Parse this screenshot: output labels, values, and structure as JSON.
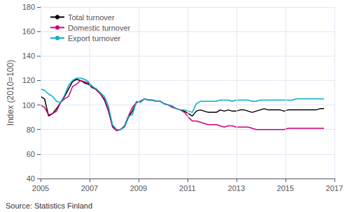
{
  "chart_data": {
    "type": "line",
    "ylabel": "Index (2010=100)",
    "annotations": [
      "Source: Statistics Finland"
    ],
    "x": [
      2005,
      2005.163099,
      2005.326197,
      2005.489296,
      2005.652394,
      2005.815493,
      2005.978592,
      2006.14169,
      2006.304789,
      2006.467887,
      2006.630986,
      2006.794085,
      2006.957183,
      2007.120282,
      2007.28338,
      2007.446479,
      2007.609577,
      2007.772676,
      2007.935775,
      2008.098873,
      2008.261972,
      2008.42507,
      2008.588169,
      2008.751268,
      2008.914366,
      2009.077465,
      2009.240563,
      2009.403662,
      2009.566761,
      2009.729859,
      2009.892958,
      2010.056056,
      2010.219155,
      2010.382254,
      2010.545352,
      2010.708451,
      2010.871549,
      2011.034648,
      2011.197746,
      2011.360845,
      2011.523944,
      2011.687042,
      2011.850141,
      2012.013239,
      2012.176338,
      2012.339437,
      2012.502535,
      2012.665634,
      2012.828732,
      2012.991831,
      2013.15493,
      2013.318028,
      2013.481127,
      2013.644225,
      2013.807324,
      2013.970423,
      2014.133521,
      2014.29662,
      2014.459718,
      2014.622817,
      2014.785915,
      2014.949014,
      2015.112113,
      2015.275211,
      2015.43831,
      2015.601408,
      2015.764507,
      2015.927606,
      2016.090704,
      2016.253803,
      2016.416901,
      2016.58
    ],
    "series": [
      {
        "name": "Total turnover",
        "color": "#000000",
        "values": [
          107,
          105,
          91,
          93,
          97,
          102,
          107,
          113,
          119,
          121,
          120,
          118,
          117,
          114,
          113,
          109,
          104,
          95,
          83,
          80,
          80,
          82,
          90,
          95,
          102,
          103,
          105,
          104,
          104,
          103,
          103,
          101,
          100,
          99,
          97,
          96,
          95,
          93,
          91,
          95,
          96,
          95,
          94,
          94,
          94,
          96,
          95,
          96,
          95,
          95,
          96,
          96,
          95,
          94,
          95,
          96,
          97,
          96,
          96,
          96,
          96,
          95,
          96,
          96,
          96,
          96,
          96,
          96,
          96,
          96,
          97,
          97
        ]
      },
      {
        "name": "Domestic turnover",
        "color": "#cc0077",
        "values": [
          100,
          98,
          92,
          93,
          95,
          102,
          105,
          107,
          115,
          117,
          120,
          119,
          118,
          115,
          112,
          109,
          105,
          96,
          82,
          79,
          80,
          83,
          91,
          98,
          102,
          103,
          105,
          104,
          104,
          103,
          103,
          101,
          100,
          98,
          97,
          96,
          94,
          90,
          87,
          87,
          86,
          85,
          84,
          84,
          84,
          83,
          82,
          83,
          83,
          82,
          82,
          82,
          82,
          81,
          80,
          80,
          80,
          80,
          80,
          80,
          80,
          80,
          81,
          81,
          81,
          81,
          81,
          81,
          81,
          81,
          81,
          81
        ]
      },
      {
        "name": "Export turnover",
        "color": "#00b0c8",
        "values": [
          113,
          112,
          109,
          107,
          103,
          102,
          108,
          116,
          120,
          122,
          122,
          121,
          119,
          115,
          113,
          110,
          107,
          99,
          84,
          80,
          80,
          82,
          91,
          92,
          103,
          102,
          105,
          104,
          104,
          103,
          103,
          101,
          100,
          99,
          97,
          96,
          96,
          95,
          94,
          101,
          103,
          103,
          103,
          103,
          103,
          104,
          104,
          104,
          103,
          104,
          104,
          104,
          104,
          103,
          103,
          104,
          104,
          104,
          104,
          104,
          104,
          104,
          104,
          104,
          105,
          105,
          105,
          105,
          105,
          105,
          105,
          105
        ]
      }
    ],
    "xlim": [
      2005,
      2017
    ],
    "ylim": [
      40,
      180
    ],
    "xticks": [
      2005,
      2007,
      2009,
      2011,
      2013,
      2015,
      2017
    ],
    "yticks": [
      40,
      60,
      80,
      100,
      120,
      140,
      160,
      180
    ],
    "grid": true,
    "legend": "upper left"
  }
}
